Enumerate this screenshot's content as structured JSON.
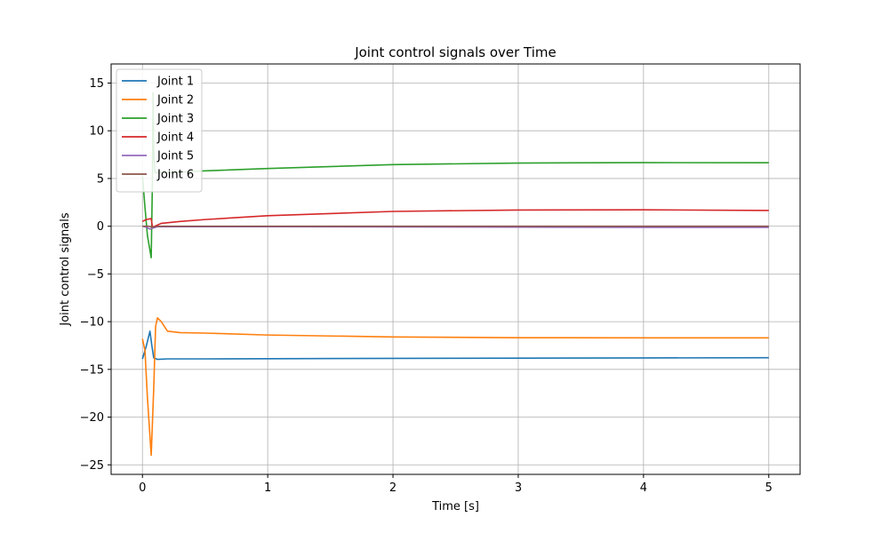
{
  "chart_data": {
    "type": "line",
    "title": "Joint control signals over Time",
    "xlabel": "Time [s]",
    "ylabel": "Joint control signals",
    "xlim": [
      -0.25,
      5.25
    ],
    "ylim": [
      -26,
      17
    ],
    "xticks": [
      0,
      1,
      2,
      3,
      4,
      5
    ],
    "yticks": [
      -25,
      -20,
      -15,
      -10,
      -5,
      0,
      5,
      10,
      15
    ],
    "grid": true,
    "legend": "upper-left",
    "series": [
      {
        "name": "Joint 1",
        "color": "#1f77b4",
        "points": [
          [
            0,
            -13.9
          ],
          [
            0.03,
            -12.6
          ],
          [
            0.06,
            -11.0
          ],
          [
            0.075,
            -12.5
          ],
          [
            0.09,
            -13.8
          ],
          [
            0.12,
            -13.95
          ],
          [
            0.2,
            -13.9
          ],
          [
            0.5,
            -13.9
          ],
          [
            1,
            -13.88
          ],
          [
            2,
            -13.85
          ],
          [
            3,
            -13.82
          ],
          [
            4,
            -13.8
          ],
          [
            5,
            -13.78
          ]
        ]
      },
      {
        "name": "Joint 2",
        "color": "#ff7f0e",
        "points": [
          [
            0,
            -11.8
          ],
          [
            0.02,
            -13.0
          ],
          [
            0.04,
            -18.0
          ],
          [
            0.07,
            -24.0
          ],
          [
            0.09,
            -17.0
          ],
          [
            0.105,
            -10.5
          ],
          [
            0.12,
            -9.6
          ],
          [
            0.15,
            -10.0
          ],
          [
            0.2,
            -11.0
          ],
          [
            0.3,
            -11.15
          ],
          [
            0.5,
            -11.2
          ],
          [
            1,
            -11.4
          ],
          [
            2,
            -11.6
          ],
          [
            3,
            -11.68
          ],
          [
            4,
            -11.7
          ],
          [
            5,
            -11.7
          ]
        ]
      },
      {
        "name": "Joint 3",
        "color": "#2ca02c",
        "points": [
          [
            0,
            5.3
          ],
          [
            0.02,
            2.0
          ],
          [
            0.04,
            -1.0
          ],
          [
            0.07,
            -3.3
          ],
          [
            0.08,
            5.0
          ],
          [
            0.085,
            14.0
          ],
          [
            0.09,
            8.0
          ],
          [
            0.1,
            5.6
          ],
          [
            0.2,
            5.6
          ],
          [
            0.5,
            5.8
          ],
          [
            1,
            6.05
          ],
          [
            2,
            6.45
          ],
          [
            3,
            6.62
          ],
          [
            4,
            6.66
          ],
          [
            5,
            6.65
          ]
        ]
      },
      {
        "name": "Joint 4",
        "color": "#d62728",
        "points": [
          [
            0,
            0.5
          ],
          [
            0.03,
            0.7
          ],
          [
            0.07,
            0.8
          ],
          [
            0.08,
            -0.1
          ],
          [
            0.1,
            0.0
          ],
          [
            0.15,
            0.3
          ],
          [
            0.3,
            0.5
          ],
          [
            0.5,
            0.7
          ],
          [
            1,
            1.1
          ],
          [
            2,
            1.55
          ],
          [
            3,
            1.7
          ],
          [
            4,
            1.72
          ],
          [
            5,
            1.65
          ]
        ]
      },
      {
        "name": "Joint 5",
        "color": "#9467bd",
        "points": [
          [
            0,
            0.0
          ],
          [
            0.03,
            -0.1
          ],
          [
            0.06,
            -0.3
          ],
          [
            0.08,
            -0.2
          ],
          [
            0.12,
            -0.05
          ],
          [
            0.5,
            -0.05
          ],
          [
            1,
            -0.05
          ],
          [
            2,
            -0.08
          ],
          [
            3,
            -0.1
          ],
          [
            4,
            -0.12
          ],
          [
            5,
            -0.12
          ]
        ]
      },
      {
        "name": "Joint 6",
        "color": "#8c564b",
        "points": [
          [
            0,
            0.0
          ],
          [
            0.05,
            0.0
          ],
          [
            0.08,
            -0.1
          ],
          [
            0.12,
            0.0
          ],
          [
            1,
            0.0
          ],
          [
            2,
            0.0
          ],
          [
            3,
            0.0
          ],
          [
            4,
            0.0
          ],
          [
            5,
            0.0
          ]
        ]
      }
    ]
  }
}
